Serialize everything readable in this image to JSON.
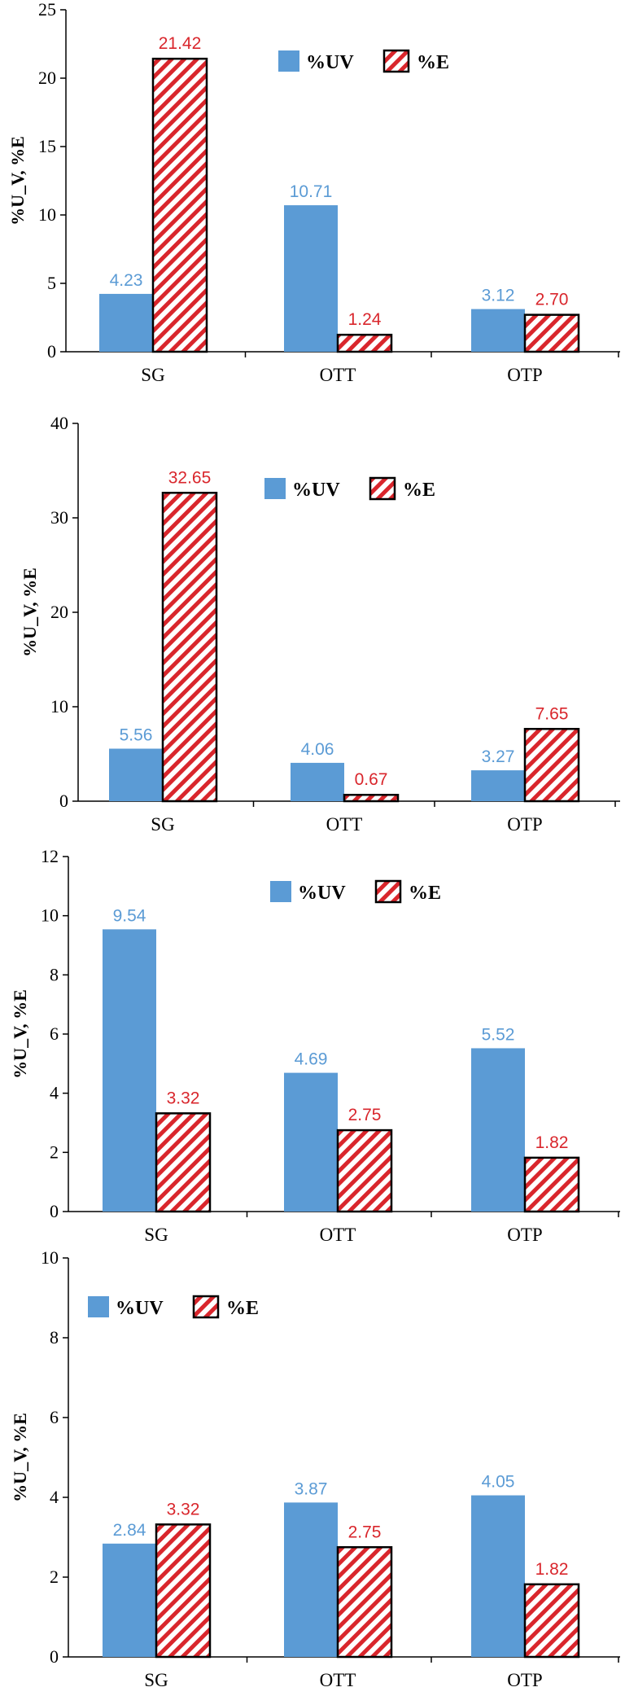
{
  "colors": {
    "blue": "#5b9bd5",
    "blue_label": "#5b9bd5",
    "red": "#d9262c",
    "red_label": "#d9262c",
    "axis": "#000000"
  },
  "chart_data": [
    {
      "type": "bar",
      "categories": [
        "SG",
        "OTT",
        "OTP"
      ],
      "series": [
        {
          "name": "%U_V",
          "values": [
            4.23,
            10.71,
            3.12
          ],
          "labels": [
            "4.23",
            "10.71",
            "3.12"
          ]
        },
        {
          "name": "%E",
          "values": [
            21.42,
            1.24,
            2.7
          ],
          "labels": [
            "21.42",
            "1.24",
            "2.70"
          ]
        }
      ],
      "ylim": [
        0,
        25
      ],
      "yticks": [
        "0",
        "5",
        "10",
        "15",
        "20",
        "25"
      ],
      "ylabel": "%U_V, %E",
      "legend": "top-center"
    },
    {
      "type": "bar",
      "categories": [
        "SG",
        "OTT",
        "OTP"
      ],
      "series": [
        {
          "name": "%U_V",
          "values": [
            5.56,
            4.06,
            3.27
          ],
          "labels": [
            "5.56",
            "4.06",
            "3.27"
          ]
        },
        {
          "name": "%E",
          "values": [
            32.65,
            0.67,
            7.65
          ],
          "labels": [
            "32.65",
            "0.67",
            "7.65"
          ]
        }
      ],
      "ylim": [
        0,
        40
      ],
      "yticks": [
        "0",
        "10",
        "20",
        "30",
        "40"
      ],
      "ylabel": "%U_V, %E",
      "legend": "top-center"
    },
    {
      "type": "bar",
      "categories": [
        "SG",
        "OTT",
        "OTP"
      ],
      "series": [
        {
          "name": "%U_V",
          "values": [
            9.54,
            4.69,
            5.52
          ],
          "labels": [
            "9.54",
            "4.69",
            "5.52"
          ]
        },
        {
          "name": "%E",
          "values": [
            3.32,
            2.75,
            1.82
          ],
          "labels": [
            "3.32",
            "2.75",
            "1.82"
          ]
        }
      ],
      "ylim": [
        0,
        12
      ],
      "yticks": [
        "0",
        "2",
        "4",
        "6",
        "8",
        "10",
        "12"
      ],
      "ylabel": "%U_V, %E",
      "legend": "top-center"
    },
    {
      "type": "bar",
      "categories": [
        "SG",
        "OTT",
        "OTP"
      ],
      "series": [
        {
          "name": "%U_V",
          "values": [
            2.84,
            3.87,
            4.05
          ],
          "labels": [
            "2.84",
            "3.87",
            "4.05"
          ]
        },
        {
          "name": "%E",
          "values": [
            3.32,
            2.75,
            1.82
          ],
          "labels": [
            "3.32",
            "2.75",
            "1.82"
          ]
        }
      ],
      "ylim": [
        0,
        10
      ],
      "yticks": [
        "0",
        "2",
        "4",
        "6",
        "8",
        "10"
      ],
      "ylabel": "%U_V, %E",
      "legend": "top-left"
    }
  ]
}
